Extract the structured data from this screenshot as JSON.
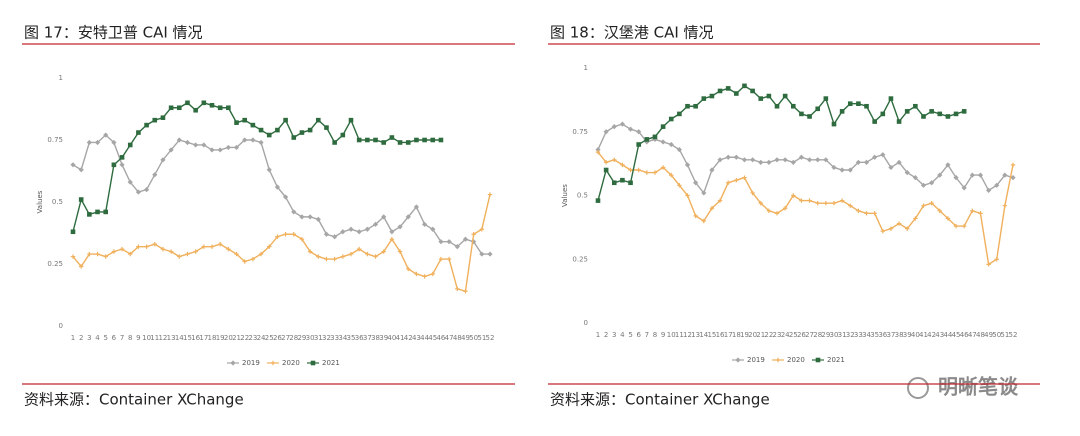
{
  "chart_data": [
    {
      "type": "line",
      "title": "图 17：安特卫普 CAI 情况",
      "source": "资料来源：Container XChange",
      "ylabel": "Values",
      "categories": [
        1,
        2,
        3,
        4,
        5,
        6,
        7,
        8,
        9,
        10,
        11,
        12,
        13,
        14,
        15,
        16,
        17,
        18,
        19,
        20,
        21,
        22,
        23,
        24,
        25,
        26,
        27,
        28,
        29,
        30,
        31,
        32,
        33,
        34,
        35,
        36,
        37,
        38,
        39,
        40,
        41,
        42,
        43,
        44,
        45,
        46,
        47,
        48,
        49,
        50,
        51,
        52
      ],
      "ylim": [
        0,
        1
      ],
      "yticks": [
        0,
        0.25,
        0.5,
        0.75,
        1
      ],
      "grid": false,
      "series": [
        {
          "name": "2019",
          "color": "#a6a6a6",
          "values": [
            0.65,
            0.63,
            0.74,
            0.74,
            0.77,
            0.74,
            0.65,
            0.58,
            0.54,
            0.55,
            0.61,
            0.67,
            0.71,
            0.75,
            0.74,
            0.73,
            0.73,
            0.71,
            0.71,
            0.72,
            0.72,
            0.75,
            0.75,
            0.74,
            0.63,
            0.56,
            0.52,
            0.46,
            0.44,
            0.44,
            0.43,
            0.37,
            0.36,
            0.38,
            0.39,
            0.38,
            0.39,
            0.41,
            0.44,
            0.38,
            0.4,
            0.44,
            0.48,
            0.41,
            0.39,
            0.34,
            0.34,
            0.32,
            0.35,
            0.34,
            0.29,
            0.29
          ]
        },
        {
          "name": "2020",
          "color": "#f0b05c",
          "values": [
            0.28,
            0.24,
            0.29,
            0.29,
            0.28,
            0.3,
            0.31,
            0.29,
            0.32,
            0.32,
            0.33,
            0.31,
            0.3,
            0.28,
            0.29,
            0.3,
            0.32,
            0.32,
            0.33,
            0.31,
            0.29,
            0.26,
            0.27,
            0.29,
            0.32,
            0.36,
            0.37,
            0.37,
            0.35,
            0.3,
            0.28,
            0.27,
            0.27,
            0.28,
            0.29,
            0.31,
            0.29,
            0.28,
            0.3,
            0.35,
            0.3,
            0.23,
            0.21,
            0.2,
            0.21,
            0.27,
            0.27,
            0.15,
            0.14,
            0.37,
            0.39,
            0.53
          ]
        },
        {
          "name": "2021",
          "color": "#2e6b3e",
          "values": [
            0.38,
            0.51,
            0.45,
            0.46,
            0.46,
            0.65,
            0.68,
            0.73,
            0.78,
            0.81,
            0.83,
            0.84,
            0.88,
            0.88,
            0.9,
            0.87,
            0.9,
            0.89,
            0.88,
            0.88,
            0.82,
            0.83,
            0.81,
            0.79,
            0.77,
            0.79,
            0.83,
            0.76,
            0.78,
            0.79,
            0.83,
            0.8,
            0.74,
            0.77,
            0.83,
            0.75,
            0.75,
            0.75,
            0.74,
            0.76,
            0.74,
            0.74,
            0.75,
            0.75,
            0.75,
            0.75,
            null,
            null,
            null,
            null,
            null,
            null
          ]
        }
      ]
    },
    {
      "type": "line",
      "title": "图 18：汉堡港 CAI 情况",
      "source": "资料来源：Container XChange",
      "ylabel": "Values",
      "categories": [
        1,
        2,
        3,
        4,
        5,
        6,
        7,
        8,
        9,
        10,
        11,
        12,
        13,
        14,
        15,
        16,
        17,
        18,
        19,
        20,
        21,
        22,
        23,
        24,
        25,
        26,
        27,
        28,
        29,
        30,
        31,
        32,
        33,
        34,
        35,
        36,
        37,
        38,
        39,
        40,
        41,
        42,
        43,
        44,
        45,
        46,
        47,
        48,
        49,
        50,
        51,
        52
      ],
      "ylim": [
        0,
        1
      ],
      "yticks": [
        0,
        0.25,
        0.5,
        0.75,
        1
      ],
      "grid": false,
      "series": [
        {
          "name": "2019",
          "color": "#a6a6a6",
          "values": [
            0.68,
            0.75,
            0.77,
            0.78,
            0.76,
            0.75,
            0.71,
            0.72,
            0.71,
            0.7,
            0.68,
            0.62,
            0.55,
            0.51,
            0.6,
            0.64,
            0.65,
            0.65,
            0.64,
            0.64,
            0.63,
            0.63,
            0.64,
            0.64,
            0.63,
            0.65,
            0.64,
            0.64,
            0.64,
            0.61,
            0.6,
            0.6,
            0.63,
            0.63,
            0.65,
            0.66,
            0.61,
            0.63,
            0.59,
            0.57,
            0.54,
            0.55,
            0.58,
            0.62,
            0.57,
            0.53,
            0.58,
            0.58,
            0.52,
            0.54,
            0.58,
            0.57
          ]
        },
        {
          "name": "2020",
          "color": "#f0b05c",
          "values": [
            0.67,
            0.63,
            0.64,
            0.62,
            0.6,
            0.6,
            0.59,
            0.59,
            0.61,
            0.58,
            0.54,
            0.5,
            0.42,
            0.4,
            0.45,
            0.48,
            0.55,
            0.56,
            0.57,
            0.51,
            0.47,
            0.44,
            0.43,
            0.45,
            0.5,
            0.48,
            0.48,
            0.47,
            0.47,
            0.47,
            0.48,
            0.46,
            0.44,
            0.43,
            0.43,
            0.36,
            0.37,
            0.39,
            0.37,
            0.41,
            0.46,
            0.47,
            0.44,
            0.41,
            0.38,
            0.38,
            0.44,
            0.43,
            0.23,
            0.25,
            0.46,
            0.62
          ]
        },
        {
          "name": "2021",
          "color": "#2e6b3e",
          "values": [
            0.48,
            0.6,
            0.55,
            0.56,
            0.55,
            0.7,
            0.72,
            0.73,
            0.77,
            0.8,
            0.82,
            0.85,
            0.85,
            0.88,
            0.89,
            0.91,
            0.92,
            0.9,
            0.93,
            0.91,
            0.88,
            0.89,
            0.85,
            0.89,
            0.85,
            0.82,
            0.81,
            0.84,
            0.88,
            0.78,
            0.83,
            0.86,
            0.86,
            0.85,
            0.79,
            0.82,
            0.88,
            0.79,
            0.83,
            0.85,
            0.81,
            0.83,
            0.82,
            0.81,
            0.82,
            0.83,
            null,
            null,
            null,
            null,
            null,
            null
          ]
        }
      ]
    }
  ],
  "watermark": "明晰笔谈"
}
